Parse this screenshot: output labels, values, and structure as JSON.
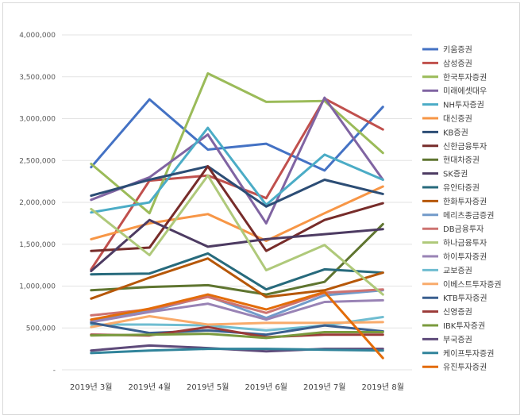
{
  "chart_data": {
    "type": "line",
    "title": "",
    "xlabel": "",
    "ylabel": "",
    "categories": [
      "2019년 3월",
      "2019년 4월",
      "2019년 5월",
      "2019년 6월",
      "2019년 7월",
      "2019년 8월"
    ],
    "ylim": [
      0,
      4000000
    ],
    "yticks": [
      0,
      500000,
      1000000,
      1500000,
      2000000,
      2500000,
      3000000,
      3500000,
      4000000
    ],
    "ytick_labels": [
      "-",
      "500,000",
      "1,000,000",
      "1,500,000",
      "2,000,000",
      "2,500,000",
      "3,000,000",
      "3,500,000",
      "4,000,000"
    ],
    "grid": true,
    "legend_position": "right",
    "series": [
      {
        "name": "키움증권",
        "color": "#4472c4",
        "values": [
          2420000,
          3230000,
          2630000,
          2700000,
          2380000,
          3140000
        ]
      },
      {
        "name": "삼성증권",
        "color": "#c0504d",
        "values": [
          1200000,
          2260000,
          2320000,
          2050000,
          3240000,
          2870000
        ]
      },
      {
        "name": "한국투자증권",
        "color": "#9bbb59",
        "values": [
          2460000,
          1870000,
          3540000,
          3200000,
          3210000,
          2590000
        ]
      },
      {
        "name": "미래에셋대우",
        "color": "#8064a2",
        "values": [
          2030000,
          2300000,
          2810000,
          1750000,
          3250000,
          2270000
        ]
      },
      {
        "name": "NH투자증권",
        "color": "#4bacc6",
        "values": [
          1880000,
          2000000,
          2890000,
          1970000,
          2570000,
          2270000
        ]
      },
      {
        "name": "대신증권",
        "color": "#f79646",
        "values": [
          1560000,
          1750000,
          1860000,
          1540000,
          1870000,
          2190000
        ]
      },
      {
        "name": "KB증권",
        "color": "#2c4d75",
        "values": [
          2080000,
          2270000,
          2430000,
          1950000,
          2270000,
          2100000
        ]
      },
      {
        "name": "신한금융투자",
        "color": "#772c2a",
        "values": [
          1420000,
          1460000,
          2430000,
          1420000,
          1790000,
          1990000
        ]
      },
      {
        "name": "현대차증권",
        "color": "#5f7530",
        "values": [
          950000,
          990000,
          1010000,
          900000,
          1050000,
          1740000
        ]
      },
      {
        "name": "SK증권",
        "color": "#4d3b62",
        "values": [
          1180000,
          1790000,
          1470000,
          1560000,
          1620000,
          1680000
        ]
      },
      {
        "name": "유안타증권",
        "color": "#276a7c",
        "values": [
          1140000,
          1150000,
          1390000,
          960000,
          1200000,
          1160000
        ]
      },
      {
        "name": "한화투자증권",
        "color": "#b65708",
        "values": [
          850000,
          1100000,
          1330000,
          870000,
          950000,
          1160000
        ]
      },
      {
        "name": "메리츠종금증권",
        "color": "#729aca",
        "values": [
          580000,
          700000,
          880000,
          620000,
          890000,
          950000
        ]
      },
      {
        "name": "DB금융투자",
        "color": "#cd7371",
        "values": [
          650000,
          720000,
          870000,
          680000,
          920000,
          960000
        ]
      },
      {
        "name": "하나금융투자",
        "color": "#afc97a",
        "values": [
          1920000,
          1370000,
          2320000,
          1190000,
          1490000,
          900000
        ]
      },
      {
        "name": "하이투자증권",
        "color": "#9983b5",
        "values": [
          570000,
          690000,
          790000,
          600000,
          810000,
          830000
        ]
      },
      {
        "name": "교보증권",
        "color": "#6fbdd1",
        "values": [
          540000,
          540000,
          530000,
          470000,
          530000,
          630000
        ]
      },
      {
        "name": "이베스트투자증권",
        "color": "#f9ab6b",
        "values": [
          510000,
          640000,
          540000,
          560000,
          560000,
          570000
        ]
      },
      {
        "name": "KTB투자증권",
        "color": "#3a5f8f",
        "values": [
          560000,
          440000,
          470000,
          420000,
          530000,
          460000
        ]
      },
      {
        "name": "신영증권",
        "color": "#9b3a38",
        "values": [
          420000,
          410000,
          510000,
          390000,
          420000,
          420000
        ]
      },
      {
        "name": "IBK투자증권",
        "color": "#7a9a3e",
        "values": [
          410000,
          420000,
          430000,
          380000,
          450000,
          450000
        ]
      },
      {
        "name": "부국증권",
        "color": "#5e4a7a",
        "values": [
          230000,
          290000,
          260000,
          220000,
          250000,
          250000
        ]
      },
      {
        "name": "케이프투자증권",
        "color": "#31849b",
        "values": [
          200000,
          230000,
          250000,
          250000,
          240000,
          230000
        ]
      },
      {
        "name": "유진투자증권",
        "color": "#e36c09",
        "values": [
          600000,
          730000,
          900000,
          720000,
          930000,
          140000
        ]
      }
    ]
  }
}
